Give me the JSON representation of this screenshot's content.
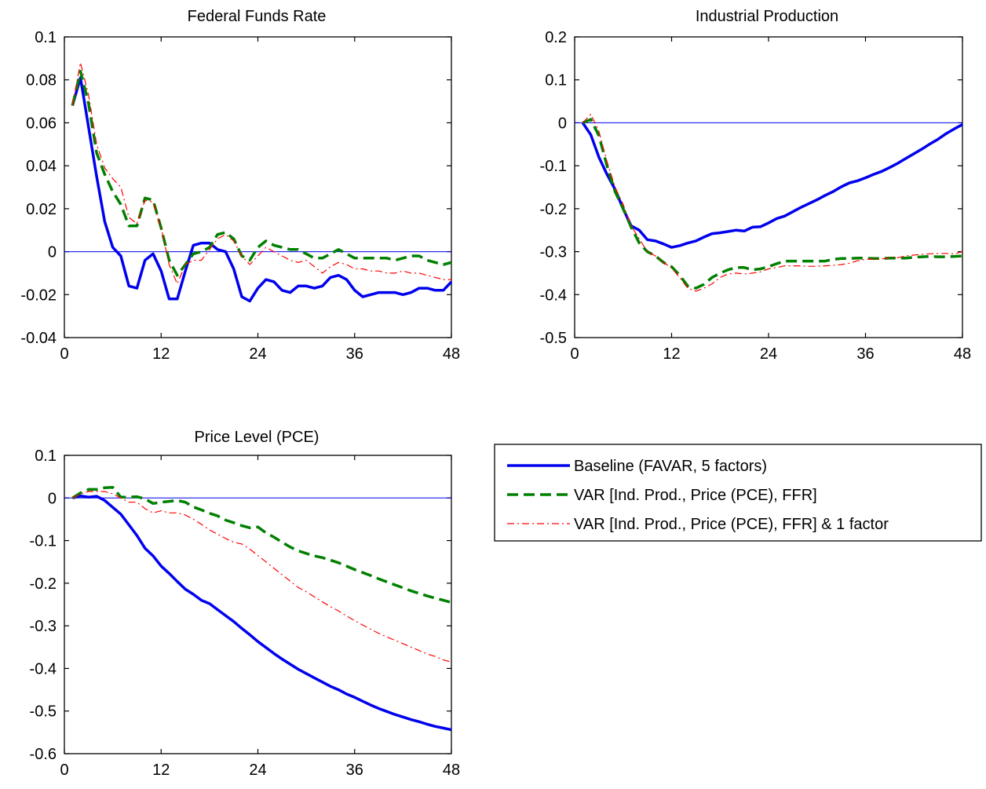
{
  "legend": {
    "entries": [
      {
        "label": "Baseline (FAVAR, 5 factors)",
        "color": "#0000ee",
        "style": "solid"
      },
      {
        "label": "VAR [Ind. Prod., Price (PCE), FFR]",
        "color": "#008000",
        "style": "dashed"
      },
      {
        "label": "VAR [Ind. Prod., Price (PCE), FFR] & 1 factor",
        "color": "#ff0000",
        "style": "dashdot"
      }
    ]
  },
  "chart_data": [
    {
      "type": "line",
      "title": "Federal Funds Rate",
      "xlim": [
        0,
        48
      ],
      "xticks": [
        0,
        12,
        24,
        36,
        48
      ],
      "ylim": [
        -0.04,
        0.1
      ],
      "yticks": [
        -0.04,
        -0.02,
        0,
        0.02,
        0.04,
        0.06,
        0.08,
        0.1
      ],
      "ytick_labels": [
        "-0.04",
        "-0.02",
        "0",
        "0.02",
        "0.04",
        "0.06",
        "0.08",
        "0.1"
      ],
      "zero_line": true,
      "x": [
        1,
        2,
        3,
        4,
        5,
        6,
        7,
        8,
        9,
        10,
        11,
        12,
        13,
        14,
        15,
        16,
        17,
        18,
        19,
        20,
        21,
        22,
        23,
        24,
        25,
        26,
        27,
        28,
        29,
        30,
        31,
        32,
        33,
        34,
        35,
        36,
        37,
        38,
        39,
        40,
        41,
        42,
        43,
        44,
        45,
        46,
        47,
        48
      ],
      "series": [
        {
          "name": "Baseline (FAVAR, 5 factors)",
          "values": [
            0.068,
            0.081,
            0.058,
            0.035,
            0.014,
            0.002,
            -0.002,
            -0.016,
            -0.017,
            -0.004,
            -0.001,
            -0.009,
            -0.022,
            -0.022,
            -0.009,
            0.003,
            0.004,
            0.004,
            0.001,
            0.0,
            -0.008,
            -0.021,
            -0.023,
            -0.017,
            -0.013,
            -0.014,
            -0.018,
            -0.019,
            -0.016,
            -0.016,
            -0.017,
            -0.016,
            -0.012,
            -0.011,
            -0.013,
            -0.018,
            -0.021,
            -0.02,
            -0.019,
            -0.019,
            -0.019,
            -0.02,
            -0.019,
            -0.017,
            -0.017,
            -0.018,
            -0.018,
            -0.014
          ]
        },
        {
          "name": "VAR [Ind. Prod., Price (PCE), FFR]",
          "values": [
            0.068,
            0.084,
            0.069,
            0.046,
            0.036,
            0.028,
            0.022,
            0.012,
            0.012,
            0.025,
            0.024,
            0.011,
            -0.004,
            -0.011,
            -0.006,
            -0.001,
            0.0,
            0.002,
            0.008,
            0.009,
            0.006,
            -0.002,
            -0.004,
            0.002,
            0.005,
            0.003,
            0.002,
            0.001,
            0.001,
            -0.001,
            -0.003,
            -0.003,
            -0.001,
            0.001,
            -0.001,
            -0.003,
            -0.003,
            -0.003,
            -0.003,
            -0.003,
            -0.004,
            -0.003,
            -0.002,
            -0.002,
            -0.004,
            -0.005,
            -0.006,
            -0.005
          ]
        },
        {
          "name": "VAR [Ind. Prod., Price (PCE), FFR] & 1 factor",
          "values": [
            0.068,
            0.088,
            0.073,
            0.05,
            0.039,
            0.034,
            0.03,
            0.016,
            0.013,
            0.024,
            0.023,
            0.011,
            -0.006,
            -0.015,
            -0.006,
            -0.004,
            -0.004,
            0.001,
            0.006,
            0.008,
            0.005,
            -0.002,
            -0.006,
            -0.002,
            0.002,
            0.0,
            -0.002,
            -0.004,
            -0.005,
            -0.004,
            -0.007,
            -0.01,
            -0.007,
            -0.005,
            -0.006,
            -0.008,
            -0.008,
            -0.009,
            -0.009,
            -0.01,
            -0.01,
            -0.009,
            -0.01,
            -0.01,
            -0.011,
            -0.012,
            -0.013,
            -0.013
          ]
        }
      ]
    },
    {
      "type": "line",
      "title": "Industrial Production",
      "xlim": [
        0,
        48
      ],
      "xticks": [
        0,
        12,
        24,
        36,
        48
      ],
      "ylim": [
        -0.5,
        0.2
      ],
      "yticks": [
        -0.5,
        -0.4,
        -0.3,
        -0.2,
        -0.1,
        0,
        0.1,
        0.2
      ],
      "ytick_labels": [
        "-0.5",
        "-0.4",
        "-0.3",
        "-0.2",
        "-0.1",
        "0",
        "0.1",
        "0.2"
      ],
      "zero_line": true,
      "x": [
        1,
        2,
        3,
        4,
        5,
        6,
        7,
        8,
        9,
        10,
        11,
        12,
        13,
        14,
        15,
        16,
        17,
        18,
        19,
        20,
        21,
        22,
        23,
        24,
        25,
        26,
        27,
        28,
        29,
        30,
        31,
        32,
        33,
        34,
        35,
        36,
        37,
        38,
        39,
        40,
        41,
        42,
        43,
        44,
        45,
        46,
        47,
        48
      ],
      "series": [
        {
          "name": "Baseline (FAVAR, 5 factors)",
          "values": [
            0.0,
            -0.028,
            -0.08,
            -0.12,
            -0.155,
            -0.2,
            -0.24,
            -0.25,
            -0.272,
            -0.275,
            -0.282,
            -0.29,
            -0.286,
            -0.28,
            -0.275,
            -0.266,
            -0.258,
            -0.256,
            -0.253,
            -0.25,
            -0.252,
            -0.243,
            -0.242,
            -0.233,
            -0.223,
            -0.217,
            -0.207,
            -0.197,
            -0.188,
            -0.179,
            -0.169,
            -0.16,
            -0.149,
            -0.14,
            -0.135,
            -0.128,
            -0.12,
            -0.113,
            -0.104,
            -0.094,
            -0.083,
            -0.072,
            -0.061,
            -0.049,
            -0.038,
            -0.025,
            -0.014,
            -0.004
          ]
        },
        {
          "name": "VAR [Ind. Prod., Price (PCE), FFR]",
          "values": [
            0.0,
            0.008,
            -0.03,
            -0.1,
            -0.16,
            -0.2,
            -0.243,
            -0.28,
            -0.3,
            -0.31,
            -0.325,
            -0.335,
            -0.355,
            -0.38,
            -0.385,
            -0.376,
            -0.36,
            -0.35,
            -0.342,
            -0.337,
            -0.337,
            -0.342,
            -0.34,
            -0.335,
            -0.328,
            -0.322,
            -0.322,
            -0.322,
            -0.322,
            -0.322,
            -0.322,
            -0.318,
            -0.316,
            -0.316,
            -0.315,
            -0.315,
            -0.316,
            -0.316,
            -0.315,
            -0.315,
            -0.315,
            -0.313,
            -0.312,
            -0.311,
            -0.312,
            -0.312,
            -0.311,
            -0.31
          ]
        },
        {
          "name": "VAR [Ind. Prod., Price (PCE), FFR] & 1 factor",
          "values": [
            0.0,
            0.02,
            -0.02,
            -0.09,
            -0.15,
            -0.19,
            -0.24,
            -0.27,
            -0.3,
            -0.31,
            -0.325,
            -0.338,
            -0.36,
            -0.385,
            -0.392,
            -0.385,
            -0.375,
            -0.36,
            -0.352,
            -0.35,
            -0.352,
            -0.35,
            -0.347,
            -0.34,
            -0.337,
            -0.333,
            -0.333,
            -0.333,
            -0.334,
            -0.334,
            -0.333,
            -0.332,
            -0.33,
            -0.327,
            -0.321,
            -0.318,
            -0.317,
            -0.317,
            -0.314,
            -0.314,
            -0.31,
            -0.308,
            -0.306,
            -0.305,
            -0.304,
            -0.304,
            -0.305,
            -0.3
          ]
        }
      ]
    },
    {
      "type": "line",
      "title": "Price Level (PCE)",
      "xlim": [
        0,
        48
      ],
      "xticks": [
        0,
        12,
        24,
        36,
        48
      ],
      "ylim": [
        -0.6,
        0.1
      ],
      "yticks": [
        -0.6,
        -0.5,
        -0.4,
        -0.3,
        -0.2,
        -0.1,
        0,
        0.1
      ],
      "ytick_labels": [
        "-0.6",
        "-0.5",
        "-0.4",
        "-0.3",
        "-0.2",
        "-0.1",
        "0",
        "0.1"
      ],
      "zero_line": true,
      "x": [
        1,
        2,
        3,
        4,
        5,
        6,
        7,
        8,
        9,
        10,
        11,
        12,
        13,
        14,
        15,
        16,
        17,
        18,
        19,
        20,
        21,
        22,
        23,
        24,
        25,
        26,
        27,
        28,
        29,
        30,
        31,
        32,
        33,
        34,
        35,
        36,
        37,
        38,
        39,
        40,
        41,
        42,
        43,
        44,
        45,
        46,
        47,
        48
      ],
      "series": [
        {
          "name": "Baseline (FAVAR, 5 factors)",
          "values": [
            0.0,
            0.005,
            0.002,
            0.004,
            -0.006,
            -0.022,
            -0.038,
            -0.063,
            -0.088,
            -0.118,
            -0.136,
            -0.16,
            -0.177,
            -0.196,
            -0.214,
            -0.226,
            -0.24,
            -0.248,
            -0.262,
            -0.276,
            -0.29,
            -0.306,
            -0.321,
            -0.337,
            -0.351,
            -0.365,
            -0.378,
            -0.39,
            -0.402,
            -0.412,
            -0.422,
            -0.432,
            -0.442,
            -0.45,
            -0.46,
            -0.468,
            -0.477,
            -0.486,
            -0.494,
            -0.501,
            -0.508,
            -0.514,
            -0.52,
            -0.525,
            -0.531,
            -0.536,
            -0.54,
            -0.544
          ]
        },
        {
          "name": "VAR [Ind. Prod., Price (PCE), FFR]",
          "values": [
            0.0,
            0.012,
            0.02,
            0.02,
            0.024,
            0.025,
            0.002,
            0.002,
            0.003,
            -0.002,
            -0.013,
            -0.01,
            -0.008,
            -0.006,
            -0.01,
            -0.021,
            -0.028,
            -0.036,
            -0.042,
            -0.052,
            -0.058,
            -0.065,
            -0.07,
            -0.068,
            -0.082,
            -0.092,
            -0.104,
            -0.115,
            -0.124,
            -0.13,
            -0.136,
            -0.14,
            -0.146,
            -0.152,
            -0.16,
            -0.168,
            -0.175,
            -0.182,
            -0.19,
            -0.197,
            -0.204,
            -0.211,
            -0.218,
            -0.224,
            -0.23,
            -0.235,
            -0.24,
            -0.245
          ]
        },
        {
          "name": "VAR [Ind. Prod., Price (PCE), FFR] & 1 factor",
          "values": [
            0.0,
            0.01,
            0.015,
            0.015,
            0.015,
            0.01,
            0.0,
            -0.01,
            -0.01,
            -0.025,
            -0.035,
            -0.03,
            -0.035,
            -0.035,
            -0.04,
            -0.05,
            -0.062,
            -0.075,
            -0.085,
            -0.095,
            -0.104,
            -0.108,
            -0.12,
            -0.135,
            -0.15,
            -0.165,
            -0.18,
            -0.195,
            -0.21,
            -0.22,
            -0.232,
            -0.244,
            -0.255,
            -0.265,
            -0.277,
            -0.288,
            -0.298,
            -0.308,
            -0.318,
            -0.326,
            -0.334,
            -0.342,
            -0.35,
            -0.358,
            -0.366,
            -0.372,
            -0.38,
            -0.385
          ]
        }
      ]
    }
  ]
}
